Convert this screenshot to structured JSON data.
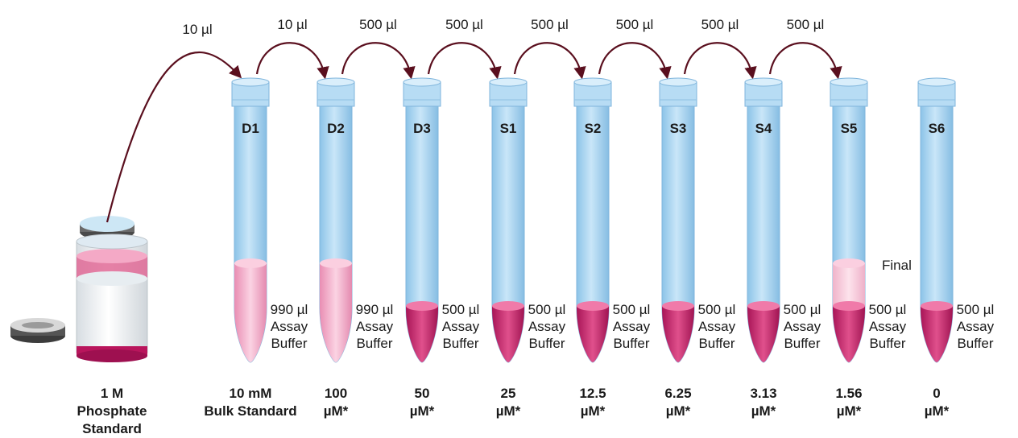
{
  "stock": {
    "label_lines": [
      "1 M",
      "Phosphate",
      "Standard"
    ]
  },
  "transfers": [
    "10 µl",
    "10 µl",
    "500 µl",
    "500 µl",
    "500 µl",
    "500 µl",
    "500 µl",
    "500 µl"
  ],
  "tubes": [
    {
      "id": "D1",
      "buffer": [
        "990 µl",
        "Assay",
        "Buffer"
      ],
      "conc": [
        "10 mM",
        "Bulk Standard"
      ],
      "liquid": "full"
    },
    {
      "id": "D2",
      "buffer": [
        "990 µl",
        "Assay",
        "Buffer"
      ],
      "conc": [
        "100",
        "µM*"
      ],
      "liquid": "full"
    },
    {
      "id": "D3",
      "buffer": [
        "500 µl",
        "Assay",
        "Buffer"
      ],
      "conc": [
        "50",
        "µM*"
      ],
      "liquid": "tip"
    },
    {
      "id": "S1",
      "buffer": [
        "500 µl",
        "Assay",
        "Buffer"
      ],
      "conc": [
        "25",
        "µM*"
      ],
      "liquid": "tip"
    },
    {
      "id": "S2",
      "buffer": [
        "500 µl",
        "Assay",
        "Buffer"
      ],
      "conc": [
        "12.5",
        "µM*"
      ],
      "liquid": "tip"
    },
    {
      "id": "S3",
      "buffer": [
        "500 µl",
        "Assay",
        "Buffer"
      ],
      "conc": [
        "6.25",
        "µM*"
      ],
      "liquid": "tip"
    },
    {
      "id": "S4",
      "buffer": [
        "500 µl",
        "Assay",
        "Buffer"
      ],
      "conc": [
        "3.13",
        "µM*"
      ],
      "liquid": "tip"
    },
    {
      "id": "S5",
      "buffer": [
        "500 µl",
        "Assay",
        "Buffer"
      ],
      "conc": [
        "1.56",
        "µM*"
      ],
      "liquid": "final"
    },
    {
      "id": "S6",
      "buffer": [
        "500 µl",
        "Assay",
        "Buffer"
      ],
      "conc": [
        "0",
        "µM*"
      ],
      "liquid": "tip"
    }
  ],
  "final_label": "Final",
  "colors": {
    "tube_body": "#a8d4f2",
    "tube_rim": "#c7e4f7",
    "tube_edge": "#7fb5dc",
    "liquid_light": "#f3a9c8",
    "liquid_dark": "#c4246b",
    "arrow": "#5a0f1e"
  }
}
